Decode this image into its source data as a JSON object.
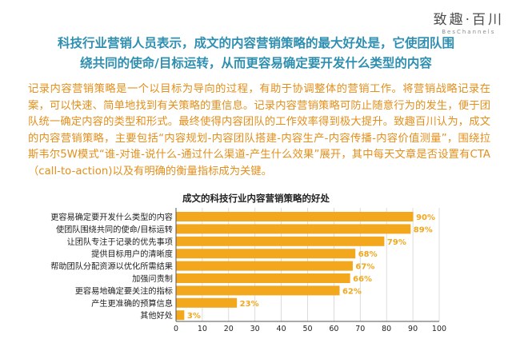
{
  "brand": {
    "name": "致趣·百川",
    "sub": "BesChannels"
  },
  "headline": [
    "科技行业营销人员表示，成文的内容营销策略的最大好处是，它使团队围",
    "绕共同的使命/目标运转，从而更容易确定要开发什么类型的内容"
  ],
  "body": "记录内容营销策略是一个以目标为导向的过程，有助于协调整体的营销工作。将营销战略记录在案，可以快速、简单地找到有关策略的重信息。记录内容营销策略可防止随意行为的发生，便于团队统一确定内容的类型和形式。最终使得内容团队的工作效率得到极大提升。致趣百川认为，成文的内容营销策略，主要包括“内容规划-内容团队搭建-内容生产-内容传播-内容价值测量”，围绕拉斯韦尔5W模式“谁-对谁-说什么-通过什么渠道-产生什么效果”展开，其中每天文章是否设置有CTA（call-to-action)以及有明确的衡量指标成为关键。",
  "colors": {
    "title": "#2f8fb0",
    "body": "#e38f1c",
    "bar": "#f2a71d",
    "grid": "#d4d4d4",
    "axis": "#555555",
    "brand": "#4d4d4d"
  },
  "chart_data": {
    "type": "bar",
    "orientation": "horizontal",
    "title": "成文的科技行业内容营销策略的好处",
    "categories": [
      "更容易确定要开发什么类型的内容",
      "使团队围绕共同的使命/目标运转",
      "让团队专注于记录的优先事项",
      "提供目标用户的清晰度",
      "帮助团队分配资源以优化所需结果",
      "加强问责制",
      "更容易地确定要关注的指标",
      "产生更准确的预算信息",
      "其他好处"
    ],
    "values": [
      90,
      89,
      79,
      68,
      67,
      66,
      62,
      23,
      3
    ],
    "value_labels": [
      "90%",
      "89%",
      "79%",
      "68%",
      "67%",
      "66%",
      "62%",
      "23%",
      "3%"
    ],
    "xlim": [
      0,
      100
    ],
    "xticks": [
      0,
      10,
      20,
      30,
      40,
      50,
      60,
      70,
      80,
      90,
      100
    ],
    "grid": true,
    "legend": "none"
  }
}
